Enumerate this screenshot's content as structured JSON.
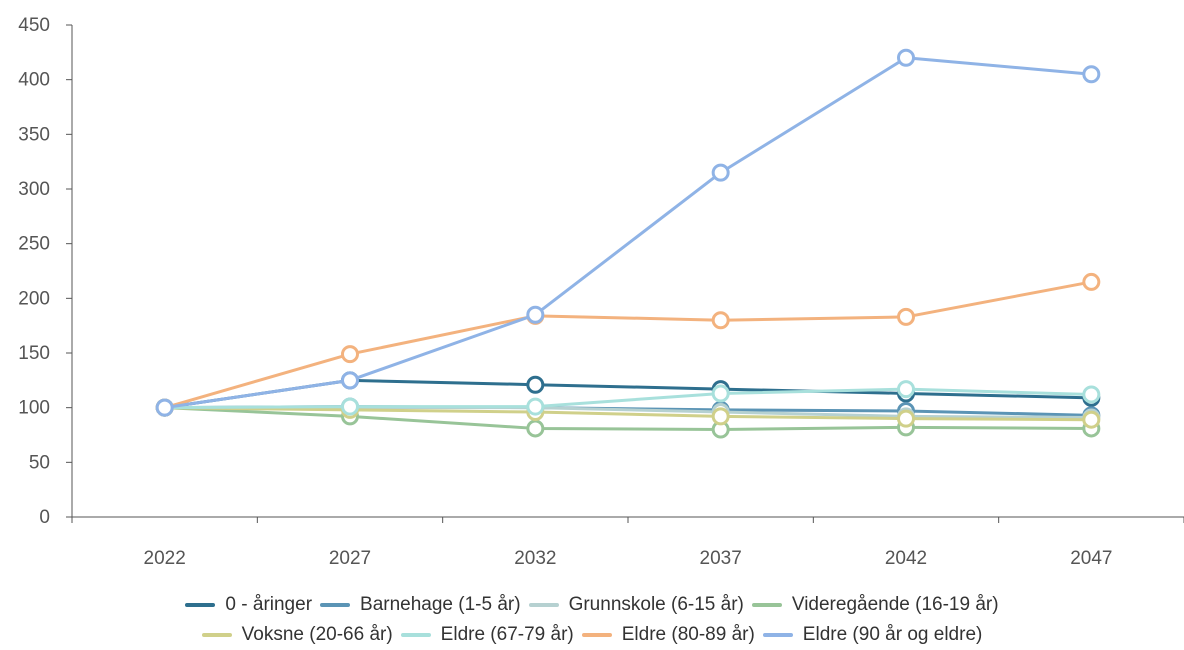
{
  "chart_data": {
    "type": "line",
    "x": [
      "2022",
      "2027",
      "2032",
      "2037",
      "2042",
      "2047"
    ],
    "ylim": [
      0,
      450
    ],
    "yticks": [
      "0",
      "50",
      "100",
      "150",
      "200",
      "250",
      "300",
      "350",
      "400",
      "450"
    ],
    "grid": false,
    "legend_position": "bottom",
    "series": [
      {
        "name": "0 - åringer",
        "color": "#2e6f8e",
        "values": [
          100,
          125,
          121,
          117,
          113,
          109
        ]
      },
      {
        "name": "Barnehage (1-5 år)",
        "color": "#5b94b5",
        "values": [
          100,
          101,
          100,
          98,
          97,
          93
        ]
      },
      {
        "name": "Grunnskole (6-15 år)",
        "color": "#b6d1d1",
        "values": [
          100,
          100,
          100,
          96,
          92,
          91
        ]
      },
      {
        "name": "Videregående (16-19 år)",
        "color": "#98c498",
        "values": [
          100,
          92,
          81,
          80,
          82,
          81
        ]
      },
      {
        "name": "Voksne (20-66 år)",
        "color": "#d0d08a",
        "values": [
          100,
          98,
          96,
          92,
          90,
          89
        ]
      },
      {
        "name": "Eldre (67-79 år)",
        "color": "#a8e0dc",
        "values": [
          100,
          101,
          101,
          113,
          117,
          112
        ]
      },
      {
        "name": "Eldre (80-89 år)",
        "color": "#f3b27e",
        "values": [
          100,
          149,
          184,
          180,
          183,
          215
        ]
      },
      {
        "name": "Eldre (90 år og eldre)",
        "color": "#8fb3e6",
        "values": [
          100,
          125,
          185,
          315,
          420,
          405
        ]
      }
    ]
  }
}
